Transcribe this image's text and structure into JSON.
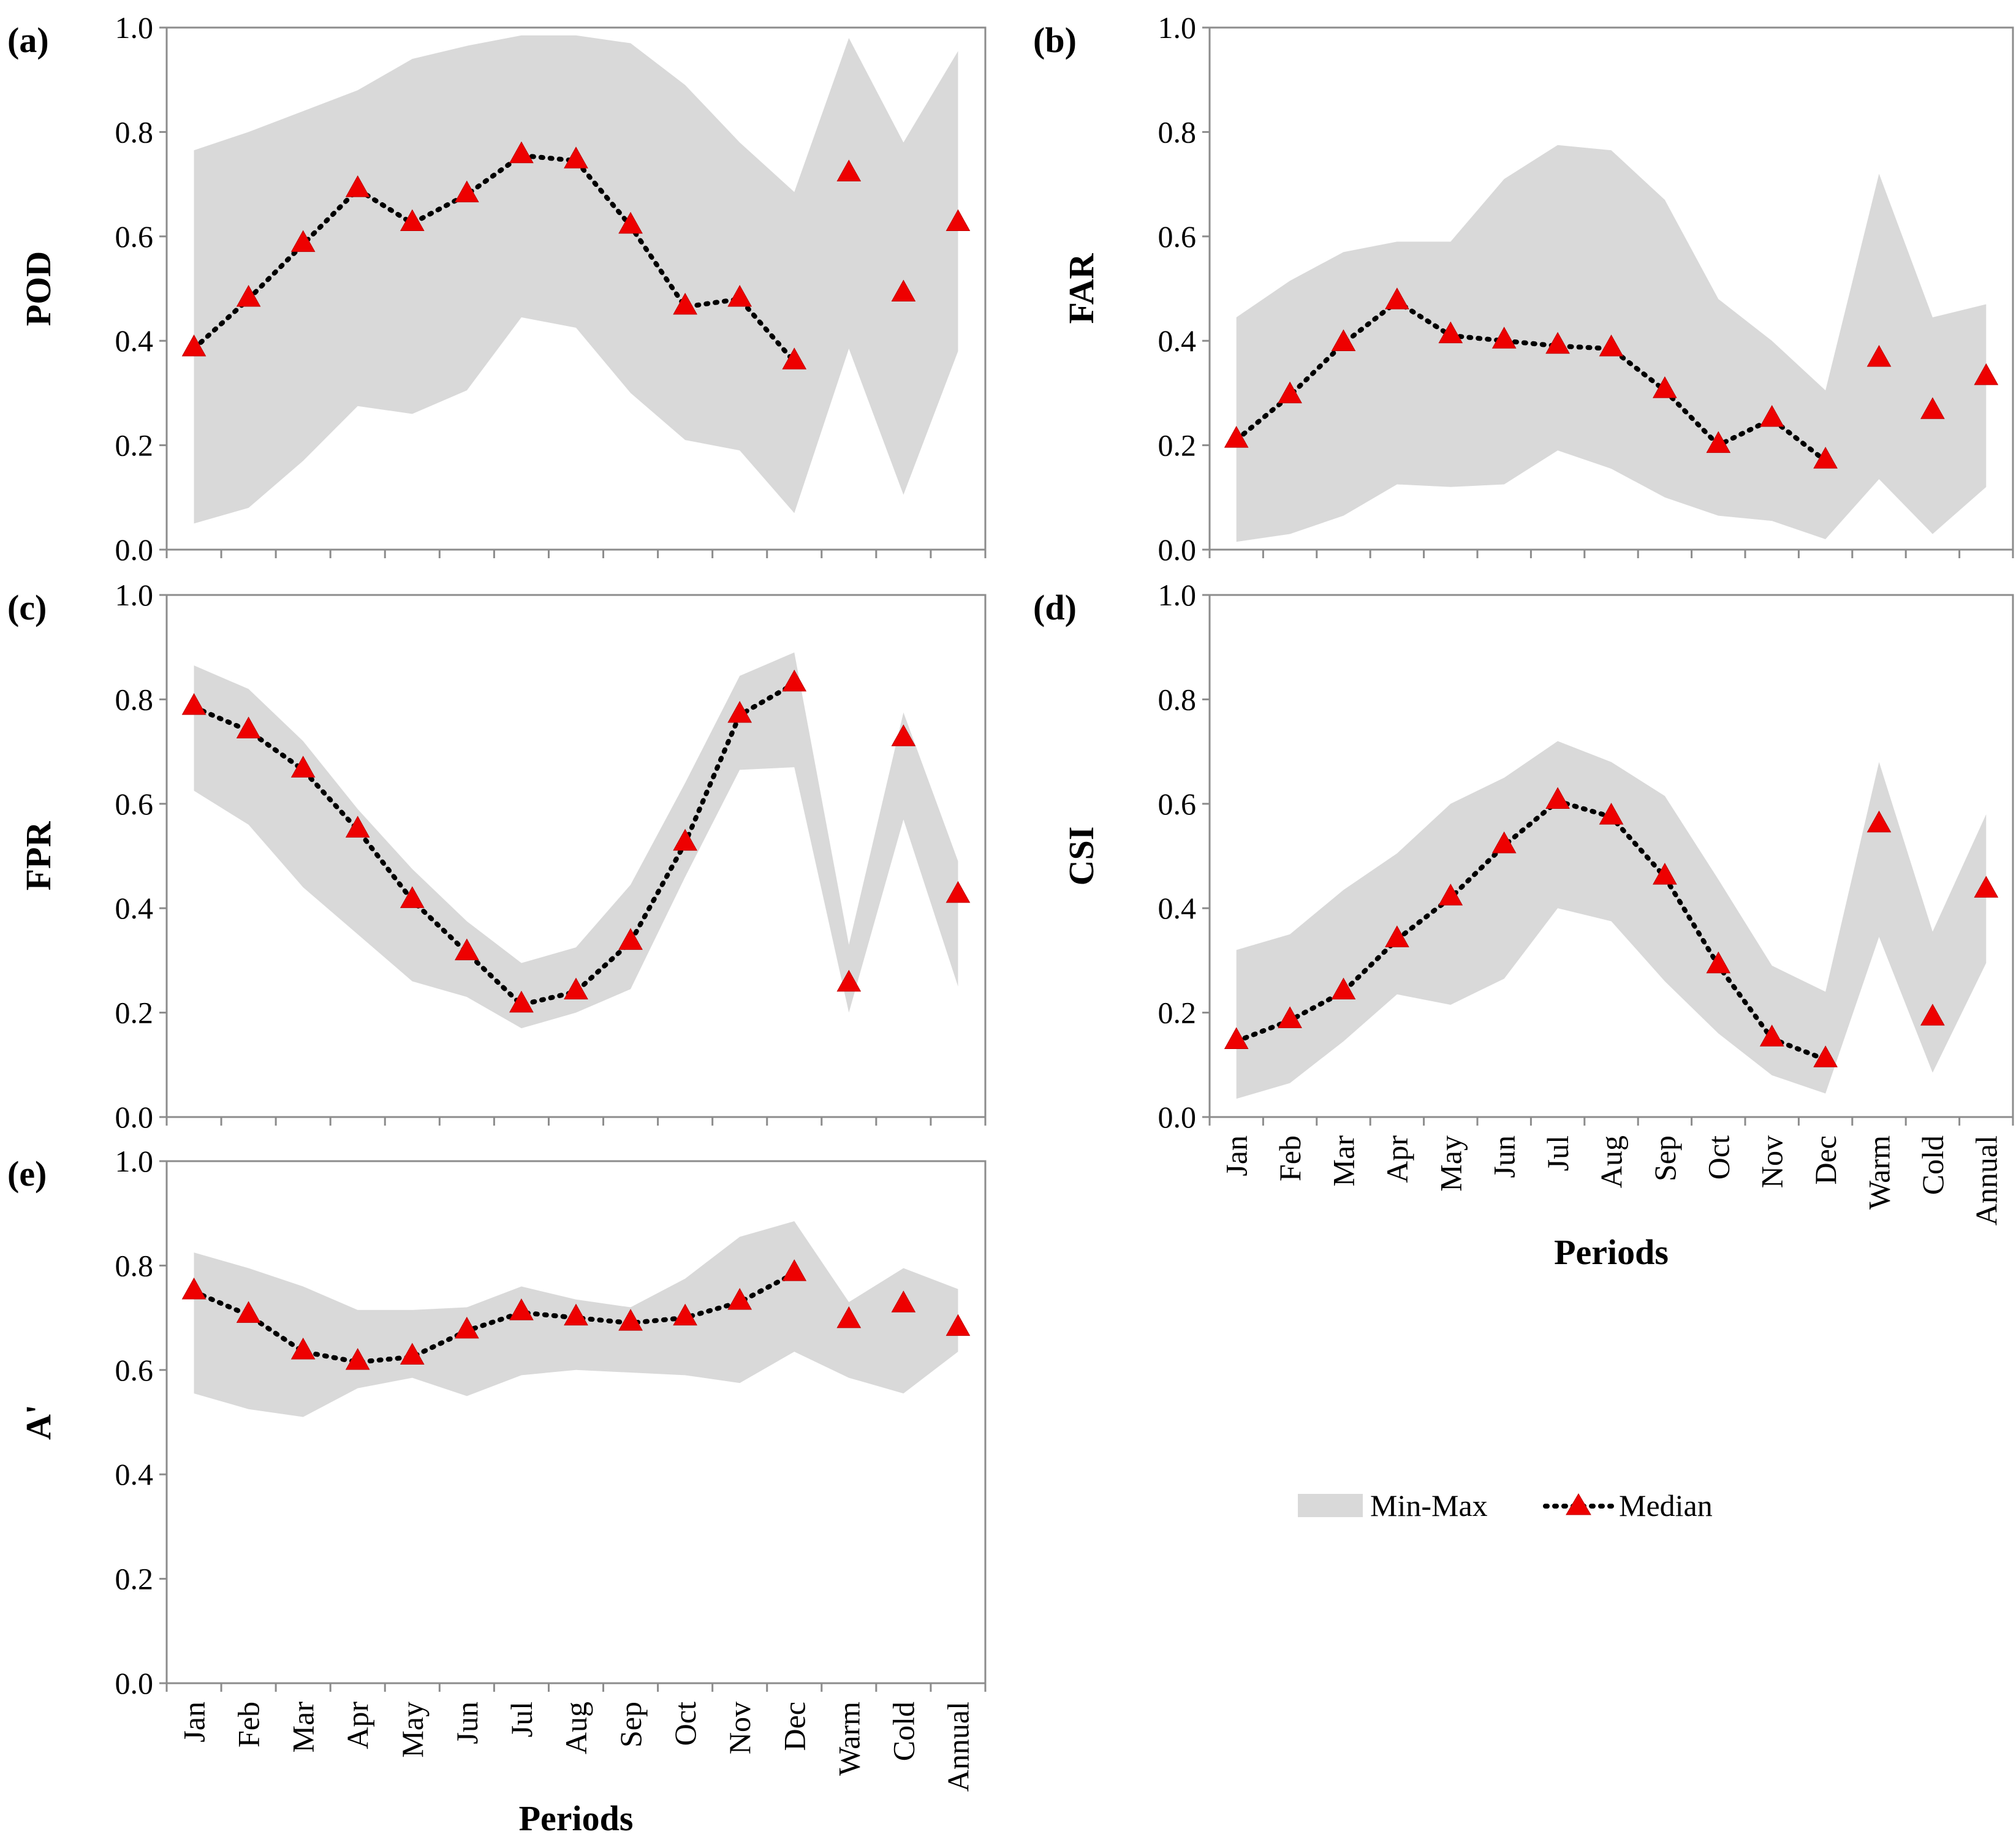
{
  "legend": {
    "band_label": "Min-Max",
    "median_label": "Median"
  },
  "colors": {
    "band": "#d9d9d9",
    "marker": "#ee0000",
    "median_line": "#000000",
    "frame": "#8c8c8c"
  },
  "chart_data": [
    {
      "panel": "(a)",
      "type": "area",
      "ylabel": "POD",
      "xlabel": "",
      "ylim": [
        0,
        1
      ],
      "yticks": [
        "0.0",
        "0.2",
        "0.4",
        "0.6",
        "0.8",
        "1.0"
      ],
      "categories": [
        "Jan",
        "Feb",
        "Mar",
        "Apr",
        "May",
        "Jun",
        "Jul",
        "Aug",
        "Sep",
        "Oct",
        "Nov",
        "Dec",
        "Warm",
        "Cold",
        "Annual"
      ],
      "show_category_labels": false,
      "series": [
        {
          "name": "Min-Max",
          "min": [
            0.05,
            0.08,
            0.17,
            0.275,
            0.26,
            0.305,
            0.445,
            0.425,
            0.3,
            0.21,
            0.19,
            0.07,
            0.385,
            0.105,
            0.38
          ],
          "max": [
            0.765,
            0.8,
            0.84,
            0.88,
            0.94,
            0.965,
            0.985,
            0.985,
            0.97,
            0.89,
            0.78,
            0.685,
            0.98,
            0.78,
            0.955
          ]
        },
        {
          "name": "Median",
          "values": [
            0.385,
            0.48,
            0.585,
            0.69,
            0.625,
            0.68,
            0.755,
            0.745,
            0.62,
            0.465,
            0.48,
            0.36,
            0.72,
            0.49,
            0.625
          ]
        }
      ]
    },
    {
      "panel": "(b)",
      "type": "area",
      "ylabel": "FAR",
      "xlabel": "",
      "ylim": [
        0,
        1
      ],
      "yticks": [
        "0.0",
        "0.2",
        "0.4",
        "0.6",
        "0.8",
        "1.0"
      ],
      "categories": [
        "Jan",
        "Feb",
        "Mar",
        "Apr",
        "May",
        "Jun",
        "Jul",
        "Aug",
        "Sep",
        "Oct",
        "Nov",
        "Dec",
        "Warm",
        "Cold",
        "Annual"
      ],
      "show_category_labels": false,
      "series": [
        {
          "name": "Min-Max",
          "min": [
            0.015,
            0.03,
            0.065,
            0.125,
            0.12,
            0.125,
            0.19,
            0.155,
            0.1,
            0.065,
            0.055,
            0.02,
            0.135,
            0.03,
            0.12
          ],
          "max": [
            0.445,
            0.515,
            0.57,
            0.59,
            0.59,
            0.71,
            0.775,
            0.765,
            0.67,
            0.48,
            0.4,
            0.305,
            0.72,
            0.445,
            0.47
          ]
        },
        {
          "name": "Median",
          "values": [
            0.21,
            0.295,
            0.395,
            0.475,
            0.41,
            0.4,
            0.39,
            0.385,
            0.305,
            0.2,
            0.25,
            0.17,
            0.365,
            0.265,
            0.33
          ]
        }
      ]
    },
    {
      "panel": "(c)",
      "type": "area",
      "ylabel": "FPR",
      "xlabel": "",
      "ylim": [
        0,
        1
      ],
      "yticks": [
        "0.0",
        "0.2",
        "0.4",
        "0.6",
        "0.8",
        "1.0"
      ],
      "categories": [
        "Jan",
        "Feb",
        "Mar",
        "Apr",
        "May",
        "Jun",
        "Jul",
        "Aug",
        "Sep",
        "Oct",
        "Nov",
        "Dec",
        "Warm",
        "Cold",
        "Annual"
      ],
      "show_category_labels": false,
      "series": [
        {
          "name": "Min-Max",
          "min": [
            0.625,
            0.56,
            0.44,
            0.35,
            0.26,
            0.23,
            0.17,
            0.2,
            0.245,
            0.46,
            0.665,
            0.67,
            0.2,
            0.57,
            0.25
          ],
          "max": [
            0.865,
            0.82,
            0.72,
            0.59,
            0.475,
            0.375,
            0.295,
            0.325,
            0.445,
            0.64,
            0.845,
            0.89,
            0.33,
            0.775,
            0.49
          ]
        },
        {
          "name": "Median",
          "values": [
            0.785,
            0.74,
            0.665,
            0.55,
            0.415,
            0.315,
            0.215,
            0.24,
            0.335,
            0.525,
            0.77,
            0.83,
            0.255,
            0.725,
            0.425
          ]
        }
      ]
    },
    {
      "panel": "(d)",
      "type": "area",
      "ylabel": "CSI",
      "xlabel": "Periods",
      "ylim": [
        0,
        1
      ],
      "yticks": [
        "0.0",
        "0.2",
        "0.4",
        "0.6",
        "0.8",
        "1.0"
      ],
      "categories": [
        "Jan",
        "Feb",
        "Mar",
        "Apr",
        "May",
        "Jun",
        "Jul",
        "Aug",
        "Sep",
        "Oct",
        "Nov",
        "Dec",
        "Warm",
        "Cold",
        "Annual"
      ],
      "show_category_labels": true,
      "series": [
        {
          "name": "Min-Max",
          "min": [
            0.035,
            0.065,
            0.145,
            0.235,
            0.215,
            0.265,
            0.4,
            0.375,
            0.26,
            0.16,
            0.08,
            0.045,
            0.345,
            0.085,
            0.295
          ],
          "max": [
            0.32,
            0.35,
            0.435,
            0.505,
            0.6,
            0.65,
            0.72,
            0.68,
            0.615,
            0.455,
            0.29,
            0.24,
            0.68,
            0.355,
            0.58
          ]
        },
        {
          "name": "Median",
          "values": [
            0.145,
            0.185,
            0.24,
            0.34,
            0.42,
            0.52,
            0.605,
            0.575,
            0.46,
            0.29,
            0.15,
            0.11,
            0.56,
            0.19,
            0.435
          ]
        }
      ]
    },
    {
      "panel": "(e)",
      "type": "area",
      "ylabel": "A'",
      "xlabel": "Periods",
      "ylim": [
        0,
        1
      ],
      "yticks": [
        "0.0",
        "0.2",
        "0.4",
        "0.6",
        "0.8",
        "1.0"
      ],
      "categories": [
        "Jan",
        "Feb",
        "Mar",
        "Apr",
        "May",
        "Jun",
        "Jul",
        "Aug",
        "Sep",
        "Oct",
        "Nov",
        "Dec",
        "Warm",
        "Cold",
        "Annual"
      ],
      "show_category_labels": true,
      "series": [
        {
          "name": "Min-Max",
          "min": [
            0.555,
            0.525,
            0.51,
            0.565,
            0.585,
            0.55,
            0.59,
            0.6,
            0.595,
            0.59,
            0.575,
            0.635,
            0.585,
            0.555,
            0.635
          ],
          "max": [
            0.825,
            0.795,
            0.76,
            0.715,
            0.715,
            0.72,
            0.76,
            0.735,
            0.72,
            0.775,
            0.855,
            0.885,
            0.73,
            0.795,
            0.755
          ]
        },
        {
          "name": "Median",
          "values": [
            0.75,
            0.705,
            0.635,
            0.615,
            0.625,
            0.675,
            0.71,
            0.7,
            0.69,
            0.7,
            0.73,
            0.785,
            0.695,
            0.725,
            0.68
          ]
        }
      ]
    }
  ]
}
